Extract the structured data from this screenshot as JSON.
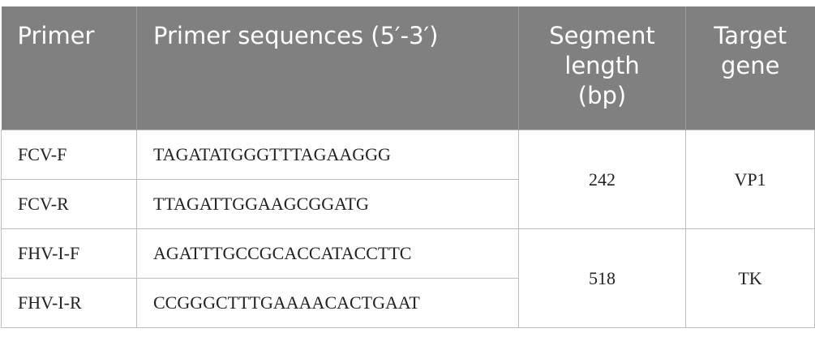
{
  "table": {
    "header": [
      "Primer",
      "Primer sequences (5′-3′)",
      "Segment length (bp)",
      "Target gene"
    ],
    "groups": [
      {
        "rows": [
          [
            "FCV-F",
            "TAGATATGGGTTTAGAAGGG"
          ],
          [
            "FCV-R",
            "TTAGATTGGAAGCGGATG"
          ]
        ],
        "segment_length": 242,
        "target_gene": "VP1"
      },
      {
        "rows": [
          [
            "FHV-I-F",
            "AGATTTGCCGCACCATACCTTC"
          ],
          [
            "FHV-I-R",
            "CCGGGCTTTGAAAACACTGAAT"
          ]
        ],
        "segment_length": 518,
        "target_gene": "TK"
      }
    ]
  }
}
